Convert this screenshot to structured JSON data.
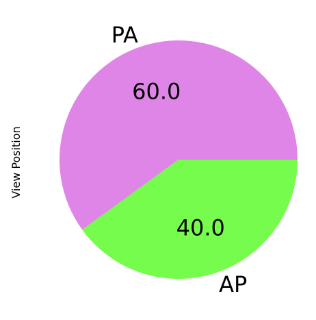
{
  "chart_data": {
    "type": "pie",
    "ylabel": "View Position",
    "slices": [
      {
        "label": "PA",
        "value": 60.0,
        "display": "60.0",
        "color": "#e085e8"
      },
      {
        "label": "AP",
        "value": 40.0,
        "display": "40.0",
        "color": "#76fc4c"
      }
    ]
  }
}
